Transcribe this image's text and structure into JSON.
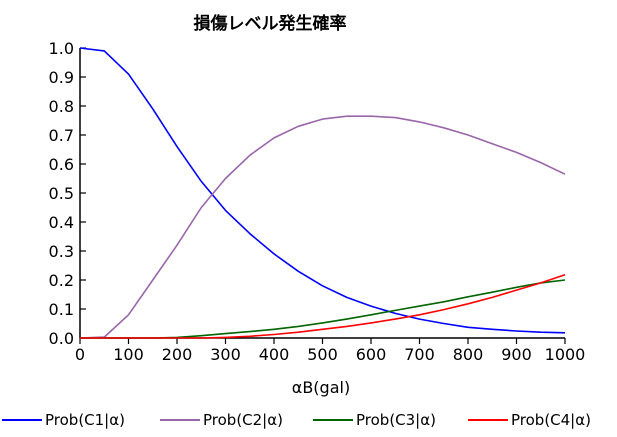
{
  "chart_data": {
    "type": "line",
    "title": "損傷レベル発生確率",
    "xlabel": "αB(gal)",
    "ylabel": "",
    "xlim": [
      0,
      1000
    ],
    "ylim": [
      0,
      1.0
    ],
    "x_ticks": [
      "0",
      "100",
      "200",
      "300",
      "400",
      "500",
      "600",
      "700",
      "800",
      "900",
      "1000"
    ],
    "y_ticks": [
      "0.0",
      "0.1",
      "0.2",
      "0.3",
      "0.4",
      "0.5",
      "0.6",
      "0.7",
      "0.8",
      "0.9",
      "1.0"
    ],
    "grid": false,
    "legend_position": "bottom",
    "x": [
      0,
      50,
      100,
      150,
      200,
      250,
      300,
      350,
      400,
      450,
      500,
      550,
      600,
      650,
      700,
      750,
      800,
      850,
      900,
      950,
      1000
    ],
    "series": [
      {
        "name": "Prob(C1|α)",
        "color": "#0000ff",
        "values": [
          1.0,
          0.99,
          0.91,
          0.79,
          0.66,
          0.54,
          0.44,
          0.36,
          0.29,
          0.23,
          0.18,
          0.14,
          0.11,
          0.085,
          0.065,
          0.05,
          0.037,
          0.03,
          0.024,
          0.02,
          0.018
        ]
      },
      {
        "name": "Prob(C2|α)",
        "color": "#9966aa",
        "values": [
          0.0,
          0.003,
          0.08,
          0.2,
          0.32,
          0.45,
          0.55,
          0.63,
          0.69,
          0.73,
          0.755,
          0.765,
          0.765,
          0.76,
          0.745,
          0.725,
          0.7,
          0.67,
          0.64,
          0.605,
          0.565
        ]
      },
      {
        "name": "Prob(C3|α)",
        "color": "#006400",
        "values": [
          0.0,
          0.0,
          0.0,
          0.0,
          0.002,
          0.008,
          0.015,
          0.022,
          0.03,
          0.04,
          0.052,
          0.065,
          0.08,
          0.095,
          0.11,
          0.125,
          0.142,
          0.158,
          0.175,
          0.19,
          0.2
        ]
      },
      {
        "name": "Prob(C4|α)",
        "color": "#ff0000",
        "values": [
          0.0,
          0.0,
          0.0,
          0.0,
          0.0,
          0.0,
          0.002,
          0.006,
          0.012,
          0.02,
          0.03,
          0.04,
          0.052,
          0.065,
          0.08,
          0.098,
          0.118,
          0.14,
          0.165,
          0.19,
          0.218
        ]
      }
    ]
  }
}
